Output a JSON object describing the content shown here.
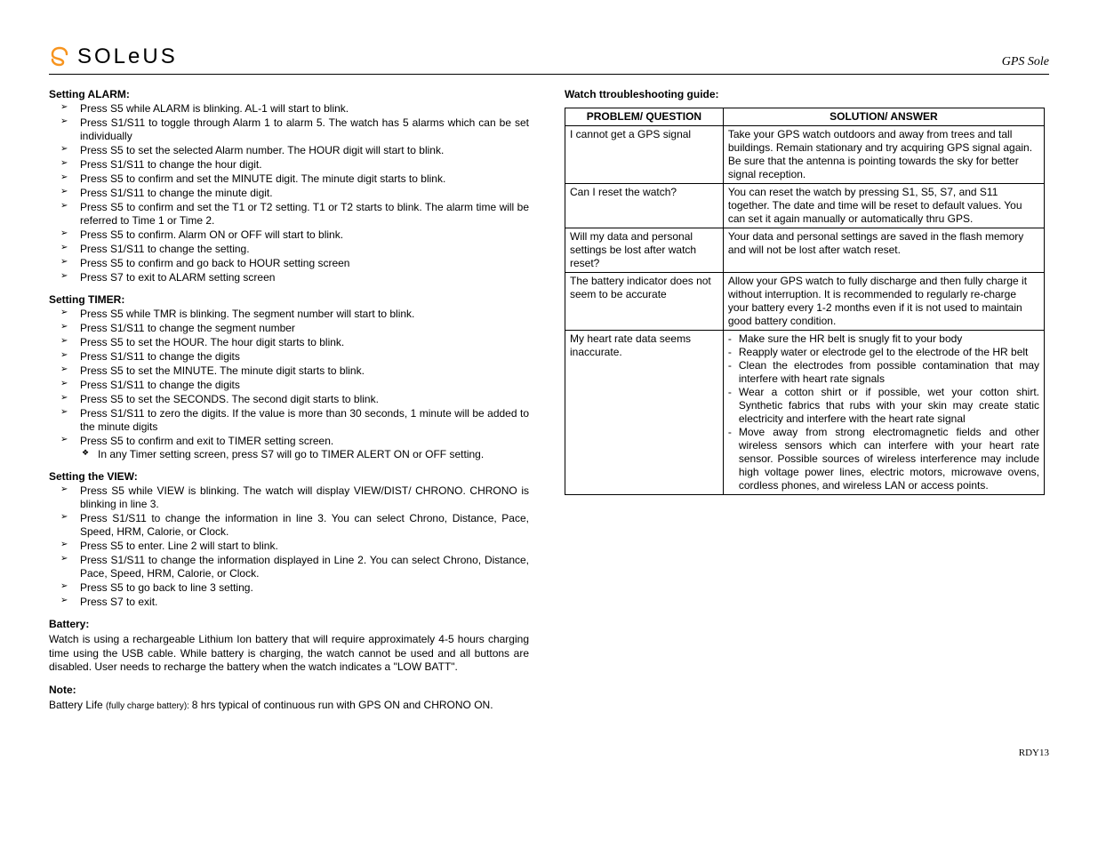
{
  "header": {
    "brand": "SOLeUS",
    "product": "GPS Sole",
    "logo_color": "#f7941e"
  },
  "left": {
    "alarm": {
      "heading": "Setting ALARM:",
      "items": [
        "Press S5 while ALARM is blinking. AL-1 will start to blink.",
        "Press S1/S11 to toggle through Alarm 1 to alarm 5. The watch has 5 alarms which can be set individually",
        "Press S5 to set the selected Alarm number. The HOUR digit will start to blink.",
        "Press S1/S11 to change the hour digit.",
        "Press S5 to confirm and set the MINUTE digit. The minute digit starts to blink.",
        "Press S1/S11 to change the minute digit.",
        "Press S5 to confirm and set the T1 or T2 setting. T1 or T2 starts to blink. The alarm time will be referred to Time 1 or Time 2.",
        "Press S5 to confirm. Alarm ON or OFF will start to blink.",
        "Press S1/S11 to change the setting.",
        "Press S5 to confirm and go back to HOUR setting screen",
        "Press S7 to exit to ALARM  setting screen"
      ]
    },
    "timer": {
      "heading": "Setting TIMER:",
      "items": [
        "Press S5 while TMR is blinking. The segment number will start to blink.",
        "Press S1/S11 to change the segment number",
        "Press S5 to set the HOUR. The hour digit starts to blink.",
        "Press S1/S11 to change the digits",
        "Press S5 to set the MINUTE. The minute digit starts to blink.",
        "Press S1/S11 to change the digits",
        "Press S5 to set the SECONDS. The second digit starts to blink.",
        "Press S1/S11 to zero the digits. If the value is more than 30 seconds, 1 minute will be added to the minute digits",
        "Press S5 to confirm and exit to TIMER setting screen."
      ],
      "sub_item": "In any Timer setting screen, press S7 will go to TIMER ALERT ON or OFF setting."
    },
    "view": {
      "heading": "Setting the VIEW:",
      "items": [
        "Press S5 while VIEW is blinking. The watch will display VIEW/DIST/ CHRONO. CHRONO is blinking in line 3.",
        "Press S1/S11 to change the information in line 3. You can select Chrono, Distance, Pace, Speed, HRM, Calorie, or Clock.",
        "Press S5 to enter. Line 2 will start to blink.",
        "Press S1/S11 to change the information displayed in Line 2. You can select Chrono, Distance, Pace, Speed, HRM, Calorie, or Clock.",
        "Press S5 to go back to line 3 setting.",
        "Press S7 to exit."
      ]
    },
    "battery": {
      "heading": "Battery:",
      "text": "Watch is using a rechargeable Lithium Ion battery that will require approximately 4-5 hours charging time using the USB cable. While battery is charging, the watch cannot be used and all buttons are disabled. User needs to recharge the battery when the watch indicates a \"LOW BATT\"."
    },
    "note": {
      "heading": "Note:",
      "prefix": "Battery Life ",
      "small": "(fully charge battery): ",
      "main": "8 hrs typical ",
      "rest": "of continuous run with GPS ON and CHRONO ON."
    }
  },
  "right": {
    "heading": "Watch ttroubleshooting guide:",
    "columns": [
      "PROBLEM/ QUESTION",
      "SOLUTION/ ANSWER"
    ],
    "rows": [
      {
        "q": "I cannot get a GPS signal",
        "a": "Take your GPS watch outdoors and away from trees and tall buildings. Remain stationary and try acquiring GPS signal again. Be sure that the antenna is pointing towards the sky for better signal reception."
      },
      {
        "q": "Can I reset the watch?",
        "a": "You can reset the watch by pressing S1, S5, S7, and S11 together.  The date and time will be reset to default values. You can set it again manually or automatically thru GPS."
      },
      {
        "q": "Will my data and personal settings be lost after watch reset?",
        "a": "Your data and personal settings are saved in the flash memory and will not be lost after watch reset."
      },
      {
        "q": "The battery indicator does not seem to be accurate",
        "a": "Allow your GPS watch to fully discharge and then fully charge it without interruption.  It is recommended to regularly re-charge your battery every 1-2 months even if it is not used to maintain good battery condition."
      },
      {
        "q": "My heart rate data seems inaccurate.",
        "a_bullets": [
          "Make sure the HR belt is snugly fit to your body",
          "Reapply water or electrode gel to the electrode of the HR belt",
          "Clean the electrodes from possible contamination that may interfere with heart rate signals",
          "Wear a cotton shirt or if possible, wet your cotton shirt. Synthetic fabrics that rubs with your skin may create static electricity and interfere with the heart rate signal",
          "Move away from strong electromagnetic fields and other wireless sensors which can interfere with your heart rate sensor. Possible sources of wireless interference may include high voltage power lines, electric motors, microwave ovens, cordless phones, and wireless LAN or access points."
        ]
      }
    ]
  },
  "footer": "RDY13"
}
